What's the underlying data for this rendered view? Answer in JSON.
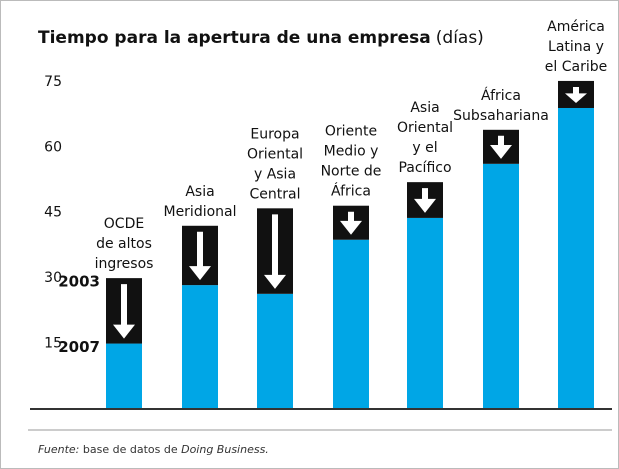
{
  "chart_data": {
    "type": "bar",
    "title": "Tiempo para la apertura de una empresa",
    "unit_label": "(días)",
    "categories": [
      [
        "OCDE",
        "de altos",
        "ingresos"
      ],
      [
        "Asia",
        "Meridional"
      ],
      [
        "Europa",
        "Oriental",
        "y Asia",
        "Central"
      ],
      [
        "Oriente",
        "Medio y",
        "Norte de",
        "África"
      ],
      [
        "Asia",
        "Oriental",
        "y el",
        "Pacífico"
      ],
      [
        "África",
        "Subsahariana"
      ],
      [
        "América",
        "Latina y",
        "el Caribe"
      ]
    ],
    "series": [
      {
        "name": "2003",
        "color": "#111111",
        "values": [
          30,
          42,
          46,
          46.6,
          52,
          64,
          75.2
        ]
      },
      {
        "name": "2007",
        "color": "#00a6e6",
        "values": [
          15,
          28.4,
          26.4,
          38.8,
          43.8,
          56.2,
          69
        ]
      }
    ],
    "ylim": [
      0,
      80
    ],
    "yticks": [
      15,
      30,
      45,
      60,
      75
    ],
    "grid": false,
    "source_prefix": "Fuente:",
    "source_text": " base de datos de ",
    "source_name": "Doing Business."
  }
}
